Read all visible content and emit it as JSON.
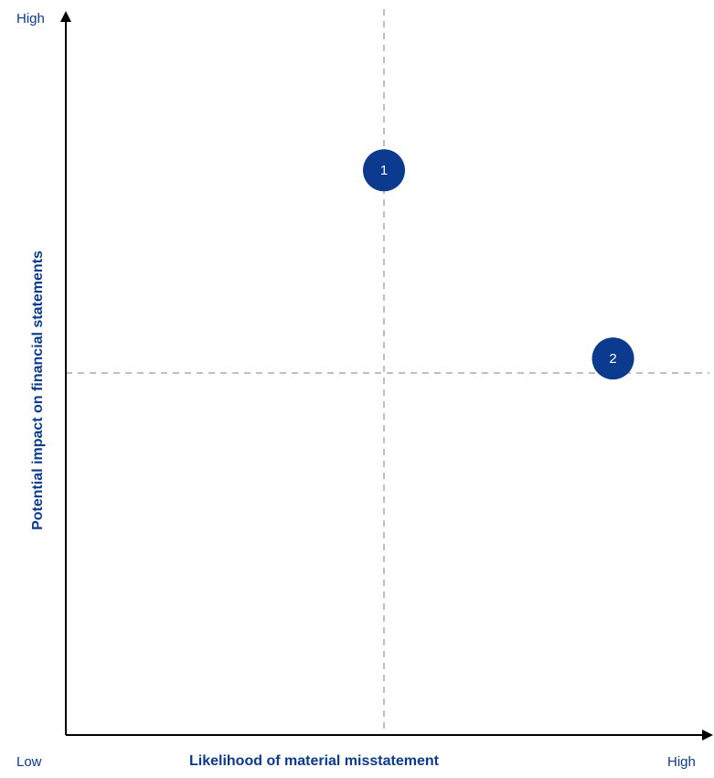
{
  "chart_data": {
    "type": "scatter",
    "title": "",
    "xlabel": "Likelihood of material misstatement",
    "ylabel": "Potential impact on financial statements",
    "x_low_label": "Low",
    "x_high_label": "High",
    "y_high_label": "High",
    "xlim": [
      0,
      1
    ],
    "ylim": [
      0,
      1
    ],
    "x_divider": 0.5,
    "y_divider": 0.5,
    "grid": false,
    "points": [
      {
        "label": "1",
        "x": 0.5,
        "y": 0.78
      },
      {
        "label": "2",
        "x": 0.86,
        "y": 0.52
      }
    ]
  },
  "colors": {
    "marker": "#0b3a8f",
    "marker_text": "#ffffff",
    "text": "#0b3a8f",
    "axis": "#000000",
    "divider": "#bfbfbf"
  }
}
